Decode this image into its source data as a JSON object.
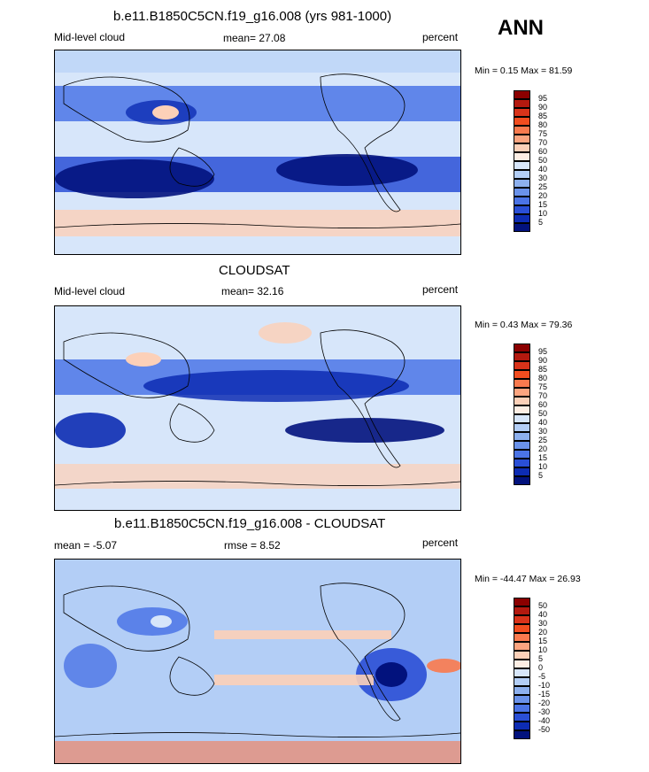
{
  "season": "ANN",
  "panels": [
    {
      "title": "b.e11.B1850C5CN.f19_g16.008 (yrs 981-1000)",
      "left_label": "Mid-level cloud",
      "stat_label": "mean=",
      "stat_value": "27.08",
      "units": "percent",
      "minmax": "Min =   0.15 Max =  81.59",
      "colorbar": {
        "labels": [
          "95",
          "90",
          "85",
          "80",
          "75",
          "70",
          "60",
          "50",
          "40",
          "30",
          "25",
          "20",
          "15",
          "10",
          "5"
        ],
        "colors": [
          "#8b0000",
          "#b3190f",
          "#d9331a",
          "#f24d1f",
          "#f97a4e",
          "#fca47f",
          "#fcd0b8",
          "#fdeee4",
          "#d7e6fa",
          "#b3cef6",
          "#8db0ee",
          "#6a92ea",
          "#4b74e6",
          "#2a4fd6",
          "#0d2cb3",
          "#02127d"
        ]
      }
    },
    {
      "title": "CLOUDSAT",
      "left_label": "Mid-level cloud",
      "stat_label": "mean=",
      "stat_value": "32.16",
      "units": "percent",
      "minmax": "Min =   0.43 Max =  79.36",
      "colorbar": {
        "labels": [
          "95",
          "90",
          "85",
          "80",
          "75",
          "70",
          "60",
          "50",
          "40",
          "30",
          "25",
          "20",
          "15",
          "10",
          "5"
        ],
        "colors": [
          "#8b0000",
          "#b3190f",
          "#d9331a",
          "#f24d1f",
          "#f97a4e",
          "#fca47f",
          "#fcd0b8",
          "#fdeee4",
          "#d7e6fa",
          "#b3cef6",
          "#8db0ee",
          "#6a92ea",
          "#4b74e6",
          "#2a4fd6",
          "#0d2cb3",
          "#02127d"
        ]
      }
    },
    {
      "title": "b.e11.B1850C5CN.f19_g16.008 - CLOUDSAT",
      "left_label": "mean =  -5.07",
      "stat_label": "rmse =",
      "stat_value": "8.52",
      "units": "percent",
      "minmax": "Min = -44.47 Max =  26.93",
      "colorbar": {
        "labels": [
          "50",
          "40",
          "30",
          "20",
          "15",
          "10",
          "5",
          "0",
          "-5",
          "-10",
          "-15",
          "-20",
          "-30",
          "-40",
          "-50"
        ],
        "colors": [
          "#8b0000",
          "#b3190f",
          "#d9331a",
          "#f24d1f",
          "#f97a4e",
          "#fca47f",
          "#fcd0b8",
          "#fdeee4",
          "#d7e6fa",
          "#b3cef6",
          "#8db0ee",
          "#6a92ea",
          "#4b74e6",
          "#2a4fd6",
          "#0d2cb3",
          "#02127d"
        ]
      }
    }
  ]
}
